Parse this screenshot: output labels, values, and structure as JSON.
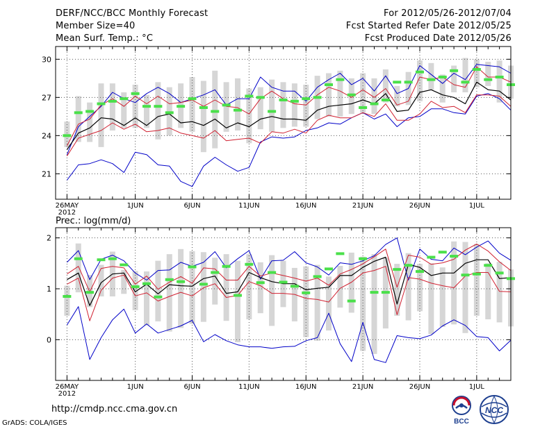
{
  "header": {
    "title": "DERF/NCC/BCC Monthly Forecast",
    "member_size": "Member Size=40",
    "variable": "Mean Surf. Temp.: °C",
    "forecast_period": "For 2012/05/26-2012/07/04",
    "fcst_started": "Fcst Started Refer Date 2012/05/25",
    "fcst_produced": "Fcst Produced Date 2012/05/26"
  },
  "footer": {
    "url": "http://cmdp.ncc.cma.gov.cn",
    "credit": "GrADS: COLA/IGES"
  },
  "logos": {
    "left_text": "BCC",
    "right_text": "NCC"
  },
  "colors": {
    "mean": "#000000",
    "spread": "#d02030",
    "extreme": "#0000c8",
    "bar": "#d6d6d6",
    "marker": "#4ae04a",
    "frame": "#000000",
    "grid": "#555555"
  },
  "chart_data": [
    {
      "type": "line",
      "title": "Mean Surf. Temp.: °C",
      "x_tick_labels": [
        "26MAY",
        "1JUN",
        "6JUN",
        "11JUN",
        "16JUN",
        "21JUN",
        "26JUN",
        "1JUL"
      ],
      "x_tick_days": [
        0,
        6,
        11,
        16,
        21,
        26,
        31,
        36
      ],
      "x_year_label": "2012",
      "xlim": [
        -1,
        39
      ],
      "ylim": [
        19,
        31
      ],
      "y_ticks": [
        21,
        24,
        27,
        30
      ],
      "days": [
        0,
        1,
        2,
        3,
        4,
        5,
        6,
        7,
        8,
        9,
        10,
        11,
        12,
        13,
        14,
        15,
        16,
        17,
        18,
        19,
        20,
        21,
        22,
        23,
        24,
        25,
        26,
        27,
        28,
        29,
        30,
        31,
        32,
        33,
        34,
        35,
        36,
        37,
        38,
        39
      ],
      "series": [
        {
          "name": "max",
          "values": [
            22.5,
            24.7,
            25.5,
            26.3,
            27.4,
            26.9,
            26.6,
            27.3,
            27.8,
            27.3,
            26.6,
            26.9,
            27.2,
            27.6,
            26.4,
            26.9,
            26.9,
            28.6,
            27.8,
            27.5,
            27.5,
            26.7,
            27.8,
            28.4,
            28.9,
            28.0,
            28.5,
            27.5,
            28.7,
            27.3,
            27.7,
            29.5,
            28.8,
            28.1,
            28.9,
            28.4,
            29.6,
            29.5,
            29.4,
            28.9
          ]
        },
        {
          "name": "upper",
          "values": [
            23.2,
            24.9,
            25.3,
            26.4,
            26.9,
            26.3,
            27.1,
            26.5,
            27.1,
            26.5,
            26.6,
            26.8,
            26.3,
            26.8,
            26.3,
            26.2,
            25.7,
            26.9,
            27.5,
            26.9,
            26.5,
            26.4,
            27.2,
            27.8,
            27.5,
            27.0,
            27.6,
            27.0,
            27.7,
            26.4,
            26.7,
            28.6,
            28.4,
            28.6,
            28.0,
            27.8,
            29.4,
            28.6,
            28.6,
            28.2
          ]
        },
        {
          "name": "mean",
          "values": [
            22.9,
            24.2,
            24.6,
            25.4,
            25.3,
            24.8,
            25.4,
            24.8,
            25.5,
            25.7,
            25.0,
            25.1,
            24.8,
            25.3,
            24.6,
            25.0,
            24.7,
            25.3,
            25.5,
            25.3,
            25.3,
            25.2,
            26.0,
            26.3,
            26.4,
            26.5,
            26.8,
            26.5,
            27.3,
            25.9,
            26.0,
            27.4,
            27.6,
            27.2,
            27.0,
            26.5,
            28.2,
            27.6,
            27.5,
            26.8
          ]
        },
        {
          "name": "lower",
          "values": [
            22.4,
            23.8,
            24.1,
            24.4,
            25.0,
            24.5,
            24.9,
            24.3,
            24.4,
            24.6,
            24.2,
            24.0,
            23.8,
            24.4,
            23.6,
            23.7,
            23.8,
            23.4,
            24.3,
            24.2,
            24.5,
            24.2,
            25.2,
            25.6,
            25.4,
            25.4,
            25.8,
            25.5,
            26.5,
            25.2,
            25.2,
            25.7,
            26.7,
            26.2,
            26.3,
            25.8,
            27.2,
            27.2,
            27.1,
            26.3
          ]
        },
        {
          "name": "min",
          "values": [
            20.5,
            21.7,
            21.8,
            22.1,
            21.8,
            21.1,
            22.7,
            22.5,
            21.7,
            21.6,
            20.4,
            20.0,
            21.6,
            22.3,
            21.7,
            21.2,
            21.5,
            23.5,
            23.9,
            23.8,
            23.9,
            24.4,
            24.6,
            25.0,
            24.9,
            25.4,
            25.8,
            25.3,
            25.7,
            24.7,
            25.4,
            25.5,
            26.1,
            26.1,
            25.8,
            25.7,
            27.1,
            27.3,
            26.9,
            26.0
          ]
        },
        {
          "name": "bar_top",
          "values": [
            25.1,
            27.1,
            26.6,
            28.1,
            28.1,
            27.4,
            28.0,
            27.2,
            28.2,
            27.8,
            28.1,
            28.6,
            28.3,
            29.1,
            28.2,
            28.5,
            27.7,
            27.8,
            28.4,
            28.2,
            28.1,
            28.0,
            28.7,
            28.9,
            29.1,
            28.5,
            28.9,
            28.5,
            29.2,
            27.9,
            29.0,
            29.9,
            29.7,
            28.8,
            29.5,
            30.1,
            30.0,
            29.8,
            29.9,
            29.5
          ]
        },
        {
          "name": "bar_bottom",
          "values": [
            23.1,
            23.5,
            23.5,
            23.1,
            24.4,
            24.6,
            24.6,
            24.6,
            23.7,
            24.0,
            24.6,
            24.3,
            22.7,
            23.0,
            24.3,
            24.4,
            23.4,
            24.5,
            24.3,
            24.6,
            24.7,
            24.7,
            25.3,
            25.5,
            25.5,
            25.7,
            25.8,
            25.7,
            26.6,
            26.3,
            26.4,
            26.7,
            27.6,
            26.6,
            27.4,
            27.4,
            27.8,
            27.9,
            26.6,
            26.9
          ]
        },
        {
          "name": "observed_markers",
          "values": [
            24.0,
            25.8,
            25.9,
            26.5,
            26.7,
            26.9,
            27.3,
            26.3,
            26.3,
            25.8,
            26.3,
            26.9,
            26.2,
            25.9,
            26.4,
            26.0,
            27.1,
            27.0,
            25.9,
            26.8,
            26.7,
            26.9,
            27.0,
            28.0,
            28.4,
            27.2,
            26.2,
            26.5,
            26.8,
            28.2,
            28.2,
            29.0,
            28.4,
            28.6,
            29.1,
            28.2,
            29.2,
            28.4,
            28.6,
            28.0
          ]
        }
      ]
    },
    {
      "type": "line",
      "title": "Prec.: log(mm/d)",
      "x_tick_labels": [
        "26MAY",
        "1JUN",
        "6JUN",
        "11JUN",
        "16JUN",
        "21JUN",
        "26JUN",
        "1JUL"
      ],
      "x_tick_days": [
        0,
        6,
        11,
        16,
        21,
        26,
        31,
        36
      ],
      "x_year_label": "2012",
      "xlim": [
        -1,
        39
      ],
      "ylim": [
        -0.8,
        2.2
      ],
      "y_ticks": [
        0,
        1,
        2
      ],
      "days": [
        0,
        1,
        2,
        3,
        4,
        5,
        6,
        7,
        8,
        9,
        10,
        11,
        12,
        13,
        14,
        15,
        16,
        17,
        18,
        19,
        20,
        21,
        22,
        23,
        24,
        25,
        26,
        27,
        28,
        29,
        30,
        31,
        32,
        33,
        34,
        35,
        36,
        37,
        38,
        39
      ],
      "series": [
        {
          "name": "max",
          "values": [
            1.52,
            1.75,
            1.18,
            1.58,
            1.66,
            1.55,
            1.31,
            1.17,
            1.36,
            1.37,
            1.52,
            1.44,
            1.52,
            1.73,
            1.41,
            1.59,
            1.75,
            1.19,
            1.55,
            1.56,
            1.73,
            1.51,
            1.43,
            1.27,
            1.51,
            1.48,
            1.55,
            1.65,
            1.87,
            2.0,
            1.17,
            1.78,
            1.58,
            1.55,
            1.8,
            1.67,
            1.82,
            1.94,
            1.7,
            1.56
          ]
        },
        {
          "name": "upper",
          "values": [
            1.29,
            1.44,
            0.94,
            1.4,
            1.44,
            1.41,
            1.09,
            1.25,
            0.99,
            1.13,
            1.24,
            1.11,
            1.41,
            1.39,
            1.17,
            1.17,
            1.44,
            1.25,
            1.31,
            1.26,
            1.21,
            1.15,
            1.21,
            1.07,
            1.29,
            1.38,
            1.49,
            1.63,
            1.78,
            1.03,
            1.66,
            1.62,
            1.48,
            1.51,
            1.58,
            1.76,
            1.88,
            1.74,
            1.53,
            1.36
          ]
        },
        {
          "name": "mean",
          "values": [
            1.18,
            1.31,
            0.67,
            1.12,
            1.29,
            1.31,
            0.94,
            1.09,
            0.9,
            1.08,
            1.06,
            1.05,
            1.2,
            1.25,
            0.91,
            0.94,
            1.32,
            1.22,
            1.14,
            1.1,
            1.1,
            0.98,
            1.01,
            1.03,
            1.26,
            1.26,
            1.42,
            1.54,
            1.62,
            0.7,
            1.48,
            1.42,
            1.26,
            1.31,
            1.31,
            1.5,
            1.57,
            1.57,
            1.2,
            1.22
          ]
        },
        {
          "name": "lower",
          "values": [
            1.09,
            1.21,
            0.37,
            0.97,
            1.21,
            1.27,
            0.86,
            0.92,
            0.76,
            0.85,
            0.93,
            0.86,
            1.02,
            1.1,
            0.83,
            0.87,
            1.14,
            1.06,
            0.91,
            0.91,
            0.89,
            0.81,
            0.79,
            0.74,
            1.01,
            1.13,
            1.31,
            1.36,
            1.44,
            0.49,
            1.22,
            1.19,
            1.11,
            1.06,
            1.02,
            1.25,
            1.32,
            1.32,
            0.95,
            0.94
          ]
        },
        {
          "name": "min",
          "values": [
            0.29,
            0.65,
            -0.39,
            0.04,
            0.39,
            0.6,
            0.13,
            0.31,
            0.13,
            0.2,
            0.27,
            0.38,
            -0.04,
            0.1,
            -0.02,
            -0.1,
            -0.14,
            -0.14,
            -0.17,
            -0.14,
            -0.13,
            -0.02,
            0.04,
            0.52,
            -0.08,
            -0.43,
            0.34,
            -0.39,
            -0.45,
            0.08,
            0.04,
            0.02,
            0.09,
            0.27,
            0.39,
            0.28,
            0.06,
            0.04,
            -0.22,
            -0.01
          ]
        },
        {
          "name": "bar_top",
          "values": [
            1.06,
            1.89,
            1.27,
            1.47,
            1.73,
            1.37,
            1.35,
            1.34,
            1.55,
            1.68,
            1.78,
            1.74,
            1.72,
            1.61,
            1.68,
            1.55,
            1.68,
            1.52,
            1.66,
            1.55,
            1.41,
            1.44,
            1.47,
            1.24,
            1.45,
            1.71,
            1.63,
            1.68,
            1.61,
            1.49,
            1.7,
            1.49,
            1.5,
            1.42,
            1.93,
            1.92,
            1.88,
            1.5,
            1.53,
            1.38
          ]
        },
        {
          "name": "bar_bottom",
          "values": [
            0.47,
            0.93,
            0.64,
            0.85,
            0.85,
            0.9,
            0.58,
            0.28,
            0.36,
            0.16,
            0.23,
            0.31,
            0.35,
            0.69,
            0.37,
            -0.05,
            0.4,
            0.52,
            0.27,
            0.64,
            0.36,
            0.05,
            -0.02,
            0.18,
            0.63,
            0.53,
            -0.22,
            -0.28,
            0.22,
            0.47,
            0.38,
            0.56,
            0.11,
            0.25,
            0.3,
            0.13,
            0.47,
            0.4,
            0.34,
            0.26
          ]
        },
        {
          "name": "observed_markers",
          "values": [
            0.85,
            1.59,
            0.93,
            1.57,
            1.59,
            1.47,
            1.04,
            1.1,
            0.84,
            1.18,
            1.14,
            1.43,
            1.09,
            1.32,
            1.44,
            0.87,
            1.48,
            1.12,
            1.32,
            1.13,
            1.05,
            0.92,
            1.24,
            1.39,
            1.69,
            0.76,
            1.59,
            0.93,
            0.93,
            1.38,
            1.46,
            1.34,
            1.62,
            1.72,
            1.64,
            1.27,
            1.29,
            1.46,
            1.31,
            1.2
          ]
        }
      ]
    }
  ]
}
